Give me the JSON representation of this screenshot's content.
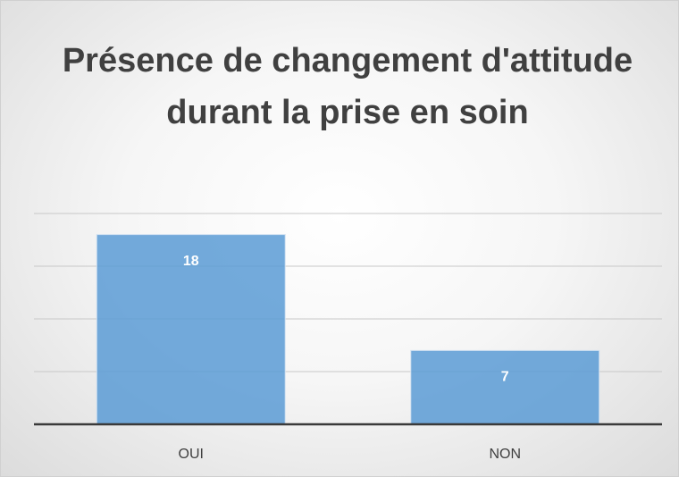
{
  "chart_data": {
    "type": "bar",
    "title": "Présence de changement d'attitude durant la prise en soin",
    "categories": [
      "OUI",
      "NON"
    ],
    "values": [
      18,
      7
    ],
    "color": "#5b9bd5",
    "ylim": [
      0,
      20
    ],
    "yticks": [
      0,
      5,
      10,
      15,
      20
    ],
    "grid": true
  }
}
